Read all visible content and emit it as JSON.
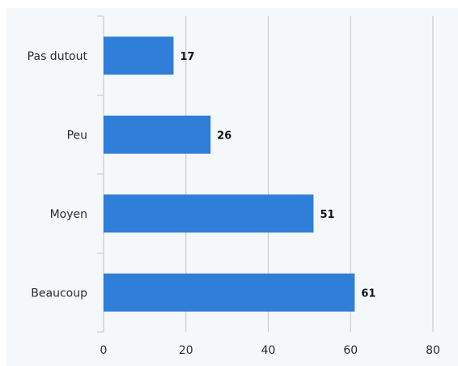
{
  "chart_data": {
    "type": "bar",
    "orientation": "horizontal",
    "categories": [
      "Pas dutout",
      "Peu",
      "Moyen",
      "Beaucoup"
    ],
    "values": [
      17,
      26,
      51,
      61
    ],
    "data_labels": [
      "17",
      "26",
      "51",
      "61"
    ],
    "x_ticks": [
      0,
      20,
      40,
      60,
      80
    ],
    "xlim": [
      0,
      80
    ],
    "grid": true,
    "bar_color": "#2f7ed8",
    "title": "",
    "xlabel": "",
    "ylabel": ""
  }
}
